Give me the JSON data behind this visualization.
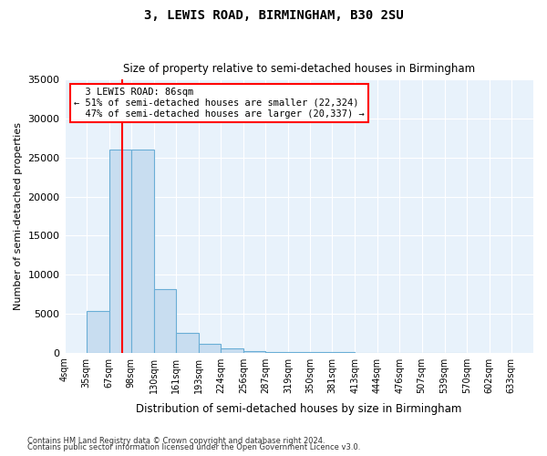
{
  "title": "3, LEWIS ROAD, BIRMINGHAM, B30 2SU",
  "subtitle": "Size of property relative to semi-detached houses in Birmingham",
  "xlabel": "Distribution of semi-detached houses by size in Birmingham",
  "ylabel": "Number of semi-detached properties",
  "property_label": "3 LEWIS ROAD: 86sqm",
  "pct_smaller": 51,
  "count_smaller": 22324,
  "pct_larger": 47,
  "count_larger": 20337,
  "bin_labels": [
    "4sqm",
    "35sqm",
    "67sqm",
    "98sqm",
    "130sqm",
    "161sqm",
    "193sqm",
    "224sqm",
    "256sqm",
    "287sqm",
    "319sqm",
    "350sqm",
    "381sqm",
    "413sqm",
    "444sqm",
    "476sqm",
    "507sqm",
    "539sqm",
    "570sqm",
    "602sqm",
    "633sqm"
  ],
  "bin_edges": [
    4,
    35,
    67,
    98,
    130,
    161,
    193,
    224,
    256,
    287,
    319,
    350,
    381,
    413,
    444,
    476,
    507,
    539,
    570,
    602,
    633
  ],
  "bar_heights": [
    0,
    5300,
    26000,
    26000,
    8100,
    2500,
    1100,
    600,
    200,
    100,
    50,
    30,
    20,
    10,
    5,
    3,
    2,
    1,
    0,
    0
  ],
  "bar_color": "#c8ddf0",
  "bar_edgecolor": "#6aaed6",
  "vline_x": 86,
  "vline_color": "red",
  "ylim": [
    0,
    35000
  ],
  "yticks": [
    0,
    5000,
    10000,
    15000,
    20000,
    25000,
    30000,
    35000
  ],
  "background_color": "#e8f2fb",
  "grid_color": "#ffffff",
  "footnote1": "Contains HM Land Registry data © Crown copyright and database right 2024.",
  "footnote2": "Contains public sector information licensed under the Open Government Licence v3.0."
}
